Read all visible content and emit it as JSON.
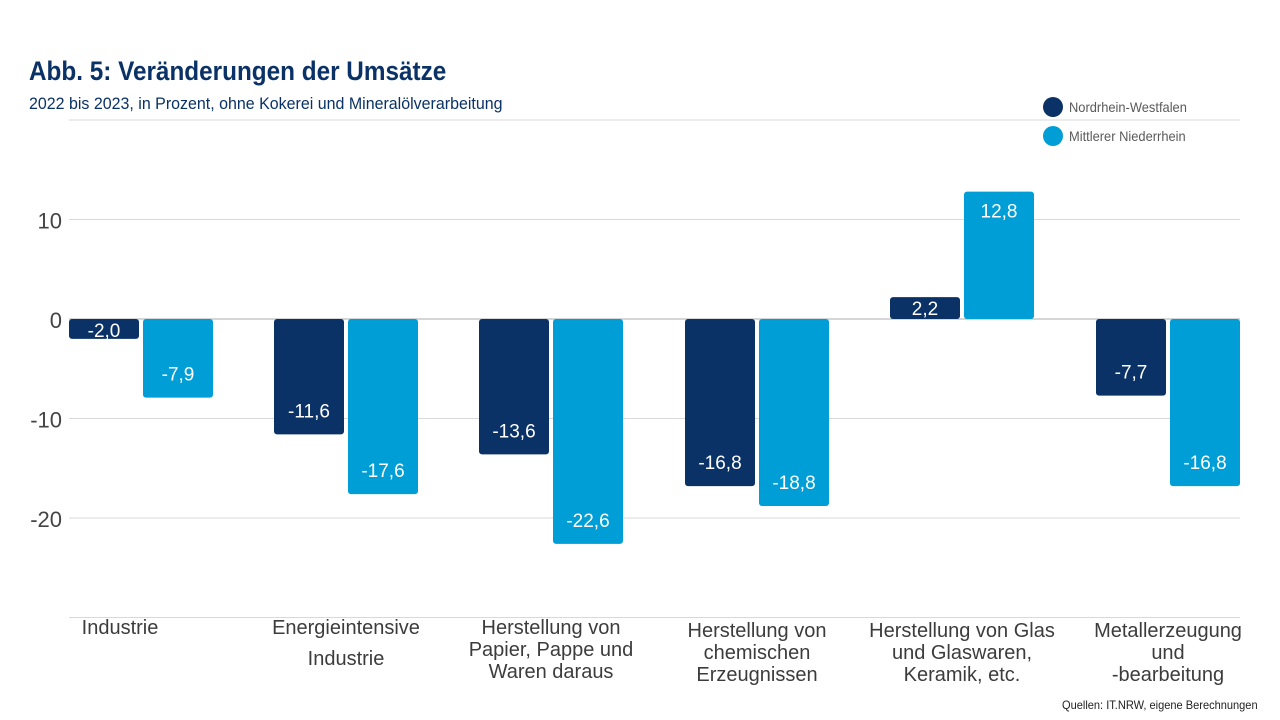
{
  "header": {
    "title": "Abb. 5: Veränderungen der Umsätze",
    "subtitle": "2022 bis 2023, in Prozent, ohne Kokerei und Mineralölverarbeitung"
  },
  "footer": {
    "source": "Quellen: IT.NRW, eigene Berechnungen"
  },
  "colors": {
    "nrw": "#0a3266",
    "mnr": "#009ed6",
    "grid": "#d9d9d9",
    "axis_text": "#444444",
    "title": "#0a3266"
  },
  "chart_data": {
    "type": "bar",
    "title": "Abb. 5: Veränderungen der Umsätze",
    "subtitle": "2022 bis 2023, in Prozent, ohne Kokerei und Mineralölverarbeitung",
    "categories": [
      [
        "Industrie"
      ],
      [
        "Energieintensive",
        "Industrie"
      ],
      [
        "Herstellung von",
        "Papier, Pappe und",
        "Waren daraus"
      ],
      [
        "Herstellung von",
        "chemischen",
        "Erzeugnissen"
      ],
      [
        "Herstellung von Glas",
        "und Glaswaren,",
        "Keramik, etc."
      ],
      [
        "Metallerzeugung",
        "und",
        "-bearbeitung"
      ]
    ],
    "series": [
      {
        "name": "Nordrhein-Westfalen",
        "values": [
          -2.0,
          -11.6,
          -13.6,
          -16.8,
          2.2,
          -7.7
        ],
        "labels": [
          "-2,0",
          "-11,6",
          "-13,6",
          "-16,8",
          "2,2",
          "-7,7"
        ]
      },
      {
        "name": "Mittlerer Niederrhein",
        "values": [
          -7.9,
          -17.6,
          -22.6,
          -18.8,
          12.8,
          -16.8
        ],
        "labels": [
          "-7,9",
          "-17,6",
          "-22,6",
          "-18,8",
          "12,8",
          "-16,8"
        ]
      }
    ],
    "yticks": [
      10,
      0,
      -10,
      -20
    ],
    "ytick_labels": [
      "10",
      "0",
      "-10",
      "-20"
    ],
    "ylim": [
      -30,
      20
    ],
    "grid": true,
    "legend_position": "top-right"
  }
}
